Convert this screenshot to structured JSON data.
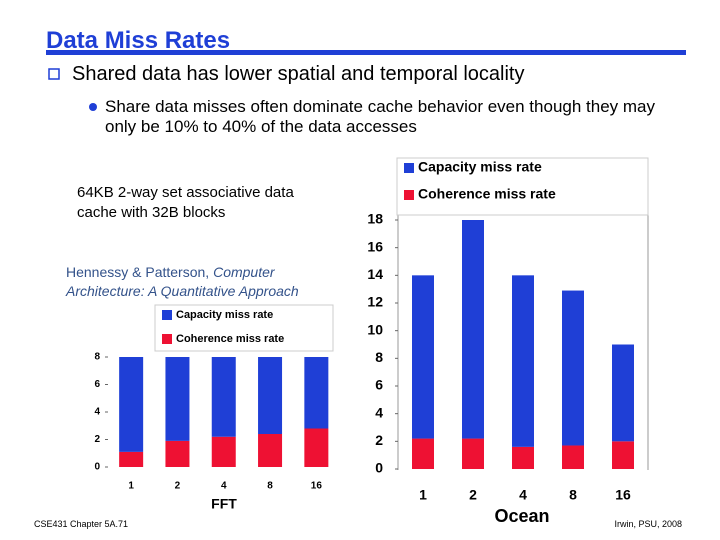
{
  "title": "Data Miss Rates",
  "bullet": "Shared data has lower spatial and temporal locality",
  "sub_bullet": "Share data misses often dominate cache behavior even though they may only be 10% to 40% of the data accesses",
  "caption": "64KB 2-way set associative data cache with 32B blocks",
  "citation": {
    "authors": "Hennessy & Patterson, ",
    "book": "Computer Architecture: A Quantitative Approach"
  },
  "footer": {
    "left": "CSE431 Chapter 5A.71",
    "right": "Irwin, PSU, 2008"
  },
  "chart_data": [
    {
      "type": "bar",
      "stacked": true,
      "xlabel": "FFT",
      "categories": [
        "1",
        "2",
        "4",
        "8",
        "16"
      ],
      "series": [
        {
          "name": "Capacity miss rate",
          "color": "#1f3fd6",
          "values": [
            6.9,
            6.1,
            5.8,
            5.6,
            5.2
          ]
        },
        {
          "name": "Coherence miss rate",
          "color": "#ee1133",
          "values": [
            1.1,
            1.9,
            2.2,
            2.4,
            2.8
          ]
        }
      ],
      "ylim": [
        0,
        8
      ],
      "yticks": [
        0,
        2,
        4,
        6,
        8
      ]
    },
    {
      "type": "bar",
      "stacked": true,
      "xlabel": "Ocean",
      "categories": [
        "1",
        "2",
        "4",
        "8",
        "16"
      ],
      "series": [
        {
          "name": "Capacity miss rate",
          "color": "#1f3fd6",
          "values": [
            11.8,
            15.8,
            12.4,
            11.2,
            7.0
          ]
        },
        {
          "name": "Coherence miss rate",
          "color": "#ee1133",
          "values": [
            2.2,
            2.2,
            1.6,
            1.7,
            2.0
          ]
        }
      ],
      "ylim": [
        0,
        18
      ],
      "yticks": [
        0,
        2,
        4,
        6,
        8,
        10,
        12,
        14,
        16,
        18
      ]
    }
  ]
}
